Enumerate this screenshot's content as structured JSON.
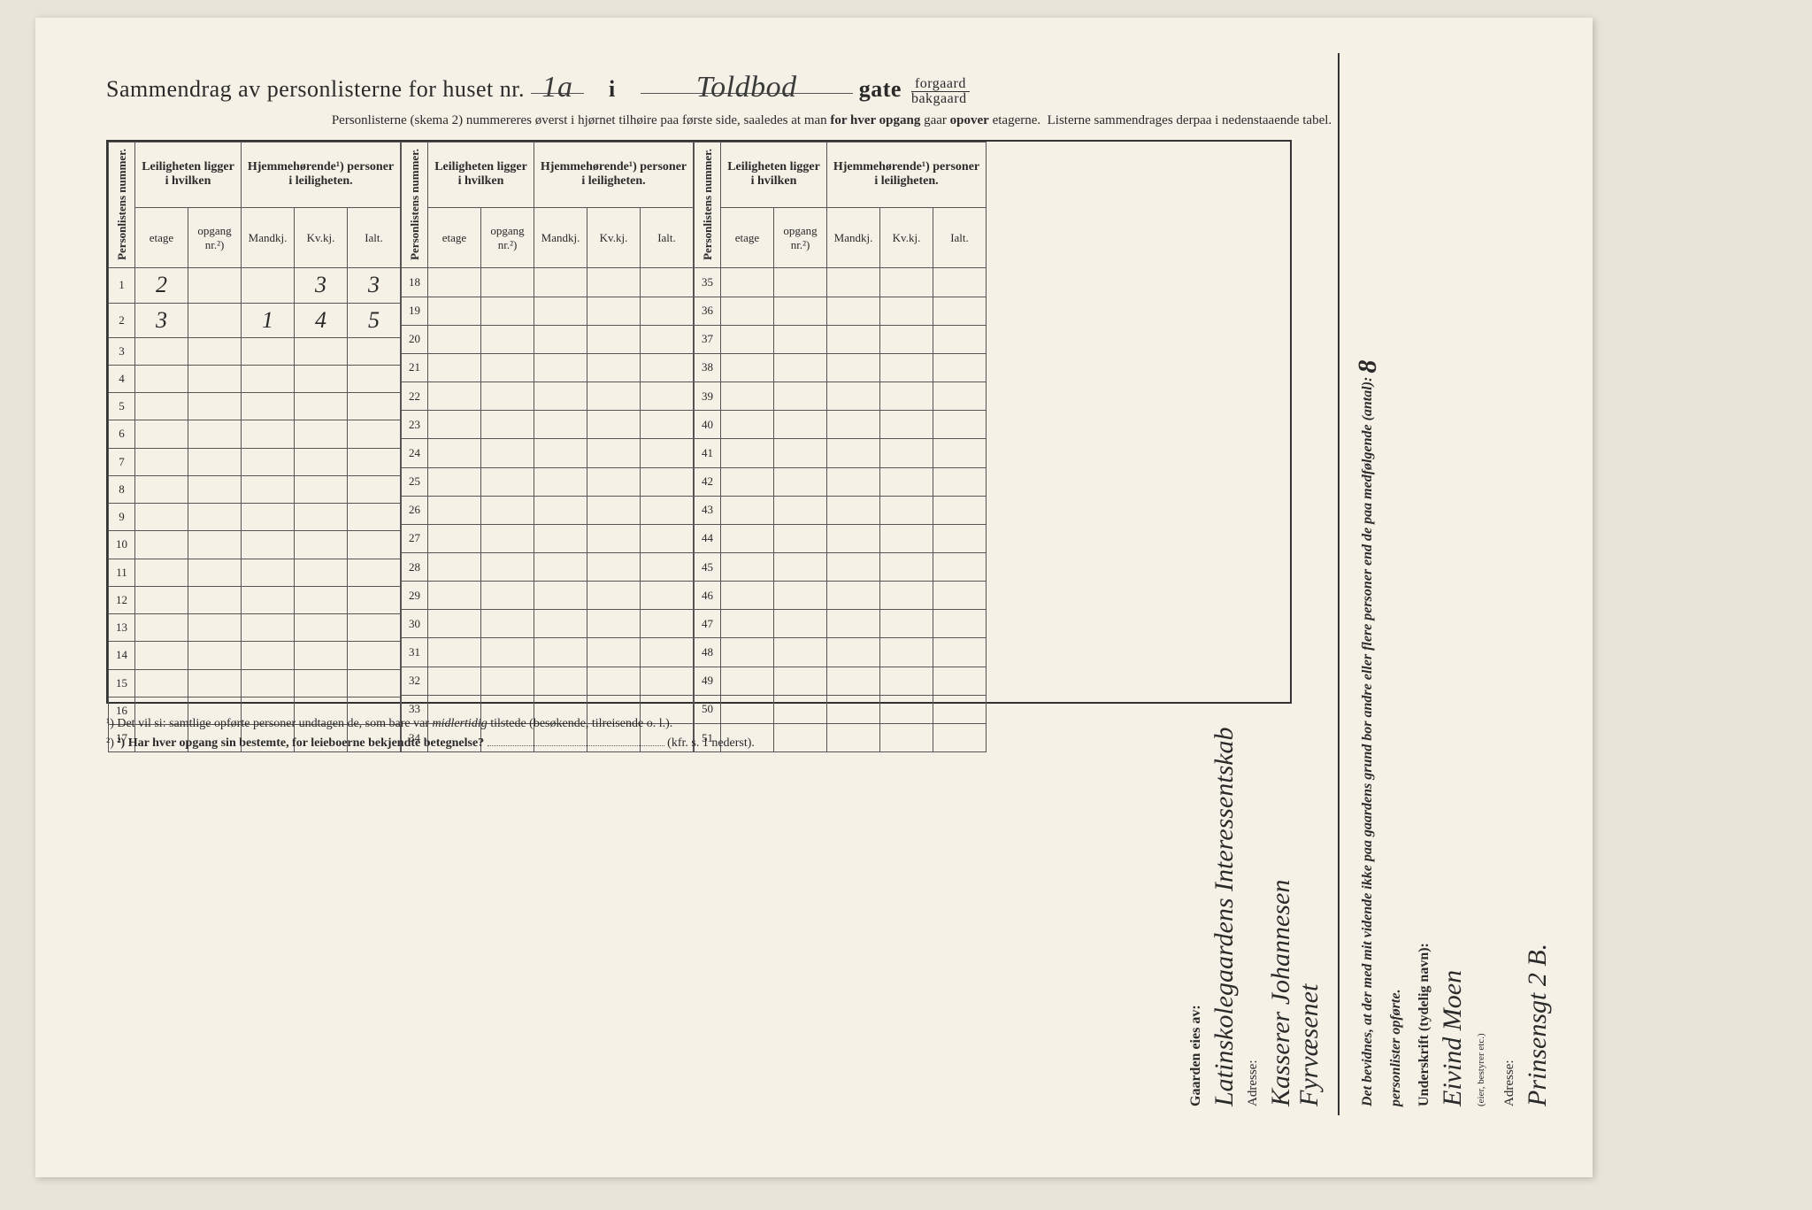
{
  "header": {
    "title_prefix": "Sammendrag av personlisterne for huset nr.",
    "house_nr": "1a",
    "i": "i",
    "street": "Toldbod",
    "gate": "gate",
    "forgaard": "forgaard",
    "bakgaard": "bakgaard",
    "subtitle": "Personlisterne (skema 2) nummereres øverst i hjørnet tilhøire paa første side, saaledes at man for hver opgang gaar opover etagerne. Listerne sammendrages derpaa i nedenstaaende tabel."
  },
  "table": {
    "col_personlistens": "Personlistens nummer.",
    "col_leiligheten": "Leiligheten ligger i hvilken",
    "col_hjemme": "Hjemmehørende¹) personer i leiligheten.",
    "sub_etage": "etage",
    "sub_opgang": "opgang nr.²)",
    "sub_mandkj": "Mandkj.",
    "sub_kvkj": "Kv.kj.",
    "sub_ialt": "Ialt.",
    "rows_a": [
      {
        "n": "1",
        "etage": "2",
        "opgang": "",
        "m": "",
        "k": "3",
        "i": "3"
      },
      {
        "n": "2",
        "etage": "3",
        "opgang": "",
        "m": "1",
        "k": "4",
        "i": "5"
      },
      {
        "n": "3"
      },
      {
        "n": "4"
      },
      {
        "n": "5"
      },
      {
        "n": "6"
      },
      {
        "n": "7"
      },
      {
        "n": "8"
      },
      {
        "n": "9"
      },
      {
        "n": "10"
      },
      {
        "n": "11"
      },
      {
        "n": "12"
      },
      {
        "n": "13"
      },
      {
        "n": "14"
      },
      {
        "n": "15"
      },
      {
        "n": "16"
      },
      {
        "n": "17"
      }
    ],
    "rows_b": [
      {
        "n": "18"
      },
      {
        "n": "19"
      },
      {
        "n": "20"
      },
      {
        "n": "21"
      },
      {
        "n": "22"
      },
      {
        "n": "23"
      },
      {
        "n": "24"
      },
      {
        "n": "25"
      },
      {
        "n": "26"
      },
      {
        "n": "27"
      },
      {
        "n": "28"
      },
      {
        "n": "29"
      },
      {
        "n": "30"
      },
      {
        "n": "31"
      },
      {
        "n": "32"
      },
      {
        "n": "33"
      },
      {
        "n": "34"
      }
    ],
    "rows_c": [
      {
        "n": "35"
      },
      {
        "n": "36"
      },
      {
        "n": "37"
      },
      {
        "n": "38"
      },
      {
        "n": "39"
      },
      {
        "n": "40"
      },
      {
        "n": "41"
      },
      {
        "n": "42"
      },
      {
        "n": "43"
      },
      {
        "n": "44"
      },
      {
        "n": "45"
      },
      {
        "n": "46"
      },
      {
        "n": "47"
      },
      {
        "n": "48"
      },
      {
        "n": "49"
      },
      {
        "n": "50"
      },
      {
        "n": "51"
      }
    ]
  },
  "footnotes": {
    "f1": "¹) Det vil si: samtlige opførte personer undtagen de, som bare var midlertidig tilstede (besøkende, tilreisende o. l.).",
    "f2_label": "²) Har hver opgang sin bestemte, for leieboerne bekjendte betegnelse?",
    "f2_suffix": "(kfr. s. 1 nederst)."
  },
  "sidebar": {
    "owner_label": "Gaarden eies av:",
    "owner_name": "Latinskolegaardens Interessentskab",
    "owner_addr_label": "Adresse:",
    "owner_addr": "Kasserer Johannesen",
    "owner_addr2": "Fyrvæsenet",
    "attest": "Det bevidnes, at der med mit vidende ikke paa gaardens grund bor andre eller flere personer end de paa medfølgende (antal):",
    "attest_count": "8",
    "attest_suffix": "personlister opførte.",
    "sign_label": "Underskrift (tydelig navn):",
    "sign_name": "Eivind Moen",
    "sign_role": "(eier, bestyrer etc.)",
    "sign_addr_label": "Adresse:",
    "sign_addr": "Prinsensgt 2 B."
  },
  "style": {
    "paper_bg": "#f5f1e6",
    "page_bg": "#e8e4da",
    "ink": "#2a2a2a",
    "rule": "#555555"
  }
}
